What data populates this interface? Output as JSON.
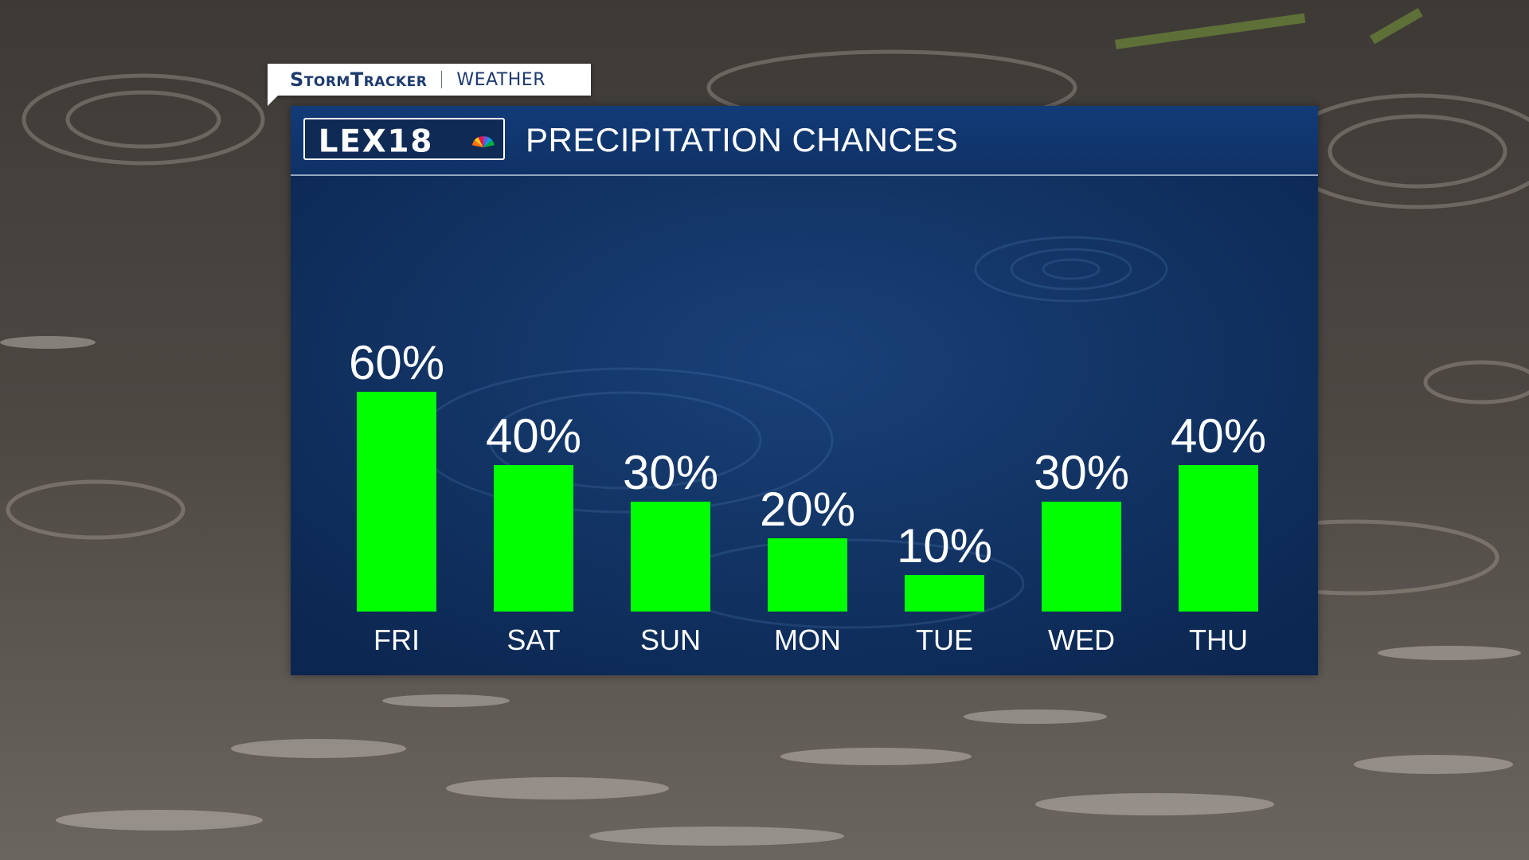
{
  "tag": {
    "brand": "StormTracker",
    "sub": "WEATHER"
  },
  "logo": {
    "text": "LEX18"
  },
  "header": {
    "title": "PRECIPITATION CHANCES"
  },
  "colors": {
    "bar": "#00ff00",
    "panel": "#0d2d5c",
    "brand": "#1d3a6e"
  },
  "chart_data": {
    "type": "bar",
    "title": "PRECIPITATION CHANCES",
    "categories": [
      "FRI",
      "SAT",
      "SUN",
      "MON",
      "TUE",
      "WED",
      "THU"
    ],
    "values": [
      60,
      40,
      30,
      20,
      10,
      30,
      40
    ],
    "value_labels": [
      "60%",
      "40%",
      "30%",
      "20%",
      "10%",
      "30%",
      "40%"
    ],
    "ylim": [
      0,
      100
    ],
    "grid": false,
    "legend": "none"
  }
}
